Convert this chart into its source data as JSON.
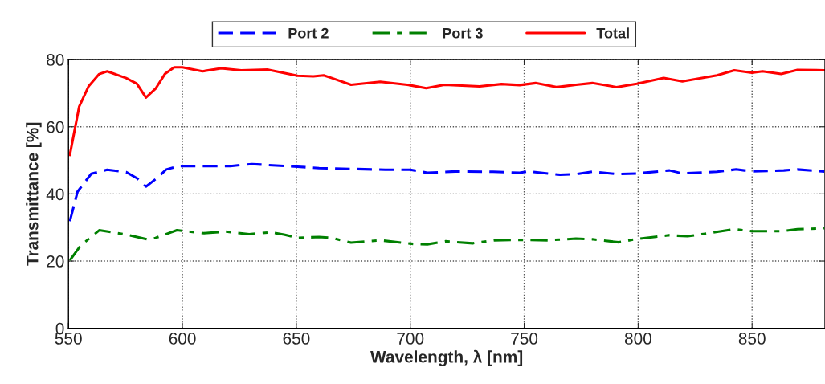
{
  "chart_data": {
    "type": "line",
    "xlabel": "Wavelength, λ [nm]",
    "ylabel": "Transmittance [%]",
    "xlim": [
      550,
      882
    ],
    "xticks": [
      550,
      600,
      650,
      700,
      750,
      800,
      850
    ],
    "ylim": [
      0,
      80
    ],
    "yticks": [
      0,
      20,
      40,
      60,
      80
    ],
    "grid": true,
    "legend": "top",
    "marker": "none",
    "series": [
      {
        "name": "Port 2",
        "color": "#0000ff",
        "line_style": "dashed",
        "x": [
          550.6,
          554,
          560,
          567,
          575.3,
          580,
          584,
          588.8,
          592.9,
          598.8,
          621,
          630.5,
          650.5,
          660,
          665.6,
          689,
          700,
          707.5,
          719.8,
          736.3,
          748,
          751.6,
          765.7,
          772.7,
          779.9,
          791,
          799.4,
          813.8,
          819.4,
          834.6,
          843,
          850,
          863.9,
          869.9,
          881.7
        ],
        "values": [
          31.9,
          40.7,
          46,
          47.2,
          46.5,
          44.7,
          42.2,
          44.7,
          47.3,
          48.3,
          48.3,
          48.9,
          48.1,
          47.7,
          47.6,
          47.2,
          47.2,
          46.3,
          46.7,
          46.6,
          46.3,
          46.7,
          45.7,
          45.9,
          46.6,
          45.9,
          46.1,
          47,
          46.1,
          46.6,
          47.3,
          46.7,
          47,
          47.3,
          46.7
        ]
      },
      {
        "name": "Port 3",
        "color": "#008000",
        "line_style": "dashdot",
        "x": [
          550.6,
          555.3,
          563.5,
          575.3,
          584.5,
          588.2,
          597.6,
          609.4,
          618.8,
          629.3,
          638.7,
          644.6,
          650.5,
          660,
          665.6,
          674,
          686.8,
          701.6,
          707.5,
          715.6,
          727.4,
          736.8,
          748.5,
          760.3,
          772.7,
          779.9,
          791.5,
          799.4,
          813.5,
          821.7,
          828.7,
          842.2,
          849.9,
          862.8,
          869.9,
          881.7
        ],
        "values": [
          20.2,
          24.6,
          29.2,
          27.9,
          26.5,
          26.9,
          29.2,
          28.3,
          28.8,
          28,
          28.6,
          27.9,
          26.9,
          27.2,
          26.9,
          25.5,
          26.2,
          25.1,
          25,
          25.9,
          25.3,
          26.2,
          26.3,
          26.2,
          26.7,
          26.5,
          25.6,
          26.6,
          27.7,
          27.4,
          28.1,
          29.5,
          28.9,
          28.9,
          29.5,
          29.8
        ]
      },
      {
        "name": "Total",
        "color": "#ff0000",
        "line_style": "solid",
        "x": [
          550.6,
          554.7,
          558.8,
          563.5,
          567,
          575.3,
          580,
          584,
          588.2,
          592.3,
          596.4,
          600,
          608.8,
          617,
          625.8,
          637.6,
          650.5,
          657.5,
          662,
          665.6,
          674,
          686.8,
          698.7,
          707,
          715,
          730.4,
          740,
          748,
          755,
          764.5,
          772.7,
          779.9,
          790.5,
          799.4,
          811.2,
          819.4,
          834.6,
          842.2,
          849.9,
          854.6,
          862.8,
          869.9,
          881.7
        ],
        "values": [
          51.6,
          66,
          72,
          75.7,
          76.5,
          74.5,
          72.8,
          68.7,
          71.3,
          75.7,
          77.7,
          77.7,
          76.5,
          77.4,
          76.8,
          77,
          75.2,
          75,
          75.3,
          74.5,
          72.5,
          73.4,
          72.5,
          71.5,
          72.5,
          72,
          72.7,
          72.4,
          73,
          71.8,
          72.5,
          73,
          71.8,
          72.8,
          74.5,
          73.5,
          75.3,
          76.8,
          76.1,
          76.5,
          75.7,
          76.9,
          76.8
        ]
      }
    ]
  }
}
